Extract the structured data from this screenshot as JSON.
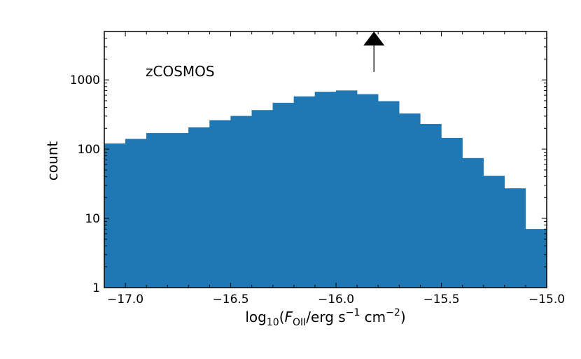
{
  "chart_data": {
    "type": "bar",
    "title": "",
    "annotation": "zCOSMOS",
    "ylabel": "count",
    "xlabel": {
      "prefix": "log",
      "prefix_sub": "10",
      "open": "(",
      "var": "F",
      "var_sub": "OII",
      "mid": "/erg s",
      "exp1": "−1",
      "mid2": " cm",
      "exp2": "−2",
      "close": ")"
    },
    "xlim": [
      -17.1,
      -15.0
    ],
    "ylim": [
      1,
      5000
    ],
    "yscale": "log",
    "bar_color": "#1f77b4",
    "x_ticks": [
      {
        "value": -17.0,
        "label": "−17.0"
      },
      {
        "value": -16.5,
        "label": "−16.5"
      },
      {
        "value": -16.0,
        "label": "−16.0"
      },
      {
        "value": -15.5,
        "label": "−15.5"
      },
      {
        "value": -15.0,
        "label": "−15.0"
      }
    ],
    "y_ticks": [
      {
        "value": 1,
        "label": "1"
      },
      {
        "value": 10,
        "label": "10"
      },
      {
        "value": 100,
        "label": "100"
      },
      {
        "value": 1000,
        "label": "1000"
      }
    ],
    "bin_edges": [
      -17.1,
      -17.0,
      -16.9,
      -16.8,
      -16.7,
      -16.6,
      -16.5,
      -16.4,
      -16.3,
      -16.2,
      -16.1,
      -16.0,
      -15.9,
      -15.8,
      -15.7,
      -15.6,
      -15.5,
      -15.4,
      -15.3,
      -15.2,
      -15.1,
      -15.0
    ],
    "values": [
      120,
      140,
      170,
      170,
      205,
      260,
      300,
      365,
      465,
      575,
      670,
      700,
      620,
      490,
      325,
      230,
      145,
      74,
      41,
      27,
      7
    ],
    "marker": {
      "x": -15.82,
      "y_base": 1300,
      "y_head": 5000,
      "color": "#000000"
    }
  }
}
